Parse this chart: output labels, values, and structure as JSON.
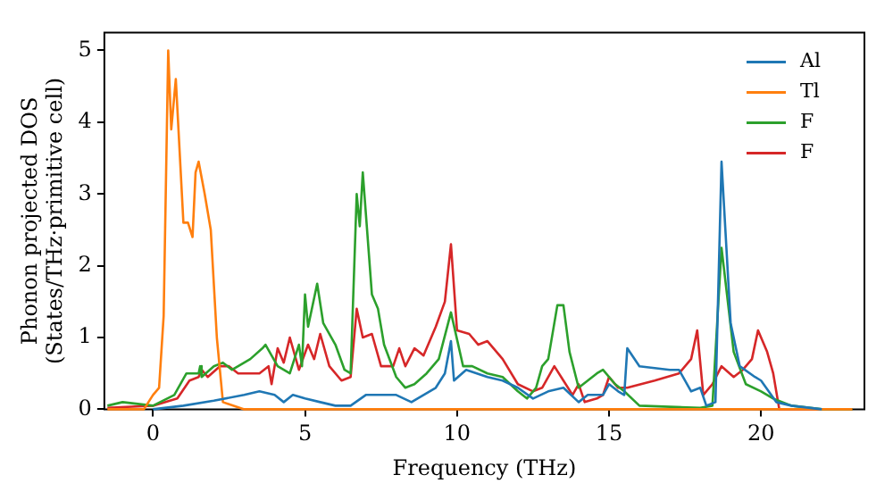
{
  "chart_data": {
    "type": "line",
    "xlabel": "Frequency (THz)",
    "ylabel": "Phonon projected DOS\n(States/THz·primitive cell)",
    "xlim": [
      -1.6,
      23.4
    ],
    "ylim": [
      0,
      5.25
    ],
    "xticks": [
      0,
      5,
      10,
      15,
      20
    ],
    "yticks": [
      0,
      1,
      2,
      3,
      4,
      5
    ],
    "grid": false,
    "legend": "top right",
    "marker": "none",
    "line_style": "solid",
    "series": [
      {
        "name": "Al",
        "color": "#1f77b4",
        "x": [
          0,
          1,
          2,
          3,
          3.5,
          4,
          4.3,
          4.6,
          5,
          5.5,
          6,
          6.5,
          7,
          8,
          8.5,
          9.3,
          9.6,
          9.8,
          9.9,
          10.3,
          11,
          11.5,
          12,
          12.5,
          13,
          13.5,
          14,
          14.3,
          14.8,
          15,
          15.3,
          15.5,
          15.6,
          16,
          17,
          17.3,
          17.7,
          18,
          18.2,
          18.5,
          18.7,
          19,
          19.3,
          19.8,
          20,
          20.5,
          21,
          22
        ],
        "values": [
          0,
          0.05,
          0.12,
          0.2,
          0.25,
          0.2,
          0.1,
          0.2,
          0.15,
          0.1,
          0.05,
          0.05,
          0.2,
          0.2,
          0.1,
          0.3,
          0.5,
          0.95,
          0.4,
          0.55,
          0.45,
          0.4,
          0.3,
          0.15,
          0.25,
          0.3,
          0.1,
          0.2,
          0.2,
          0.35,
          0.25,
          0.2,
          0.85,
          0.6,
          0.55,
          0.55,
          0.25,
          0.3,
          0.05,
          0.1,
          3.45,
          1.2,
          0.6,
          0.45,
          0.4,
          0.1,
          0.05,
          0
        ]
      },
      {
        "name": "Tl",
        "color": "#ff7f0e",
        "x": [
          -1.5,
          -0.3,
          0,
          0.2,
          0.35,
          0.5,
          0.6,
          0.75,
          1,
          1.15,
          1.3,
          1.4,
          1.5,
          1.7,
          1.9,
          2.1,
          2.3,
          3,
          5,
          10,
          15,
          20,
          23
        ],
        "values": [
          0,
          0,
          0.2,
          0.3,
          1.3,
          5,
          3.9,
          4.6,
          2.6,
          2.6,
          2.4,
          3.3,
          3.45,
          3,
          2.5,
          1,
          0.1,
          0,
          0,
          0,
          0,
          0,
          0
        ]
      },
      {
        "name": "F",
        "color": "#2ca02c",
        "x": [
          -1.5,
          -1,
          0,
          0.7,
          1.1,
          1.5,
          1.55,
          1.6,
          2,
          2.3,
          2.6,
          3.2,
          3.6,
          3.7,
          4.1,
          4.5,
          4.8,
          4.9,
          5,
          5.1,
          5.4,
          5.6,
          6,
          6.3,
          6.5,
          6.7,
          6.8,
          6.9,
          7.2,
          7.4,
          7.6,
          8,
          8.3,
          8.6,
          9,
          9.4,
          9.8,
          10.2,
          10.5,
          11,
          11.5,
          12,
          12.3,
          12.6,
          12.8,
          13,
          13.3,
          13.5,
          13.7,
          14,
          14.6,
          14.8,
          15.2,
          15.5,
          16,
          18,
          18.4,
          18.7,
          19.1,
          19.5,
          20,
          20.4,
          21,
          22,
          23
        ],
        "values": [
          0.05,
          0.1,
          0.05,
          0.2,
          0.5,
          0.5,
          0.6,
          0.45,
          0.6,
          0.65,
          0.55,
          0.7,
          0.85,
          0.9,
          0.6,
          0.5,
          0.9,
          0.6,
          1.6,
          1.15,
          1.75,
          1.2,
          0.9,
          0.55,
          0.5,
          3,
          2.55,
          3.3,
          1.6,
          1.4,
          0.9,
          0.45,
          0.3,
          0.35,
          0.5,
          0.7,
          1.35,
          0.6,
          0.6,
          0.5,
          0.45,
          0.25,
          0.15,
          0.3,
          0.6,
          0.7,
          1.45,
          1.45,
          0.8,
          0.3,
          0.5,
          0.55,
          0.35,
          0.25,
          0.05,
          0.02,
          0.05,
          2.25,
          0.8,
          0.35,
          0.25,
          0.15,
          0.05,
          0,
          0
        ]
      },
      {
        "name": "F",
        "color": "#d62728",
        "x": [
          -1.5,
          0,
          0.8,
          1.2,
          1.5,
          1.6,
          1.8,
          2.2,
          2.5,
          2.8,
          3.5,
          3.8,
          3.9,
          4.1,
          4.3,
          4.5,
          4.8,
          5.1,
          5.3,
          5.5,
          5.8,
          6.2,
          6.5,
          6.7,
          6.9,
          7.2,
          7.5,
          7.9,
          8.1,
          8.3,
          8.6,
          8.9,
          9.3,
          9.6,
          9.8,
          10,
          10.4,
          10.7,
          11,
          11.5,
          12,
          12.5,
          12.8,
          13.2,
          13.5,
          13.8,
          14,
          14.2,
          14.6,
          14.8,
          15,
          15.3,
          15.6,
          16.5,
          17.3,
          17.7,
          17.9,
          18.1,
          18.4,
          18.7,
          19.1,
          19.4,
          19.7,
          19.9,
          20.2,
          20.4,
          20.6,
          22,
          23
        ],
        "values": [
          0.02,
          0.05,
          0.15,
          0.4,
          0.45,
          0.55,
          0.45,
          0.6,
          0.6,
          0.5,
          0.5,
          0.6,
          0.35,
          0.85,
          0.65,
          1,
          0.55,
          0.9,
          0.7,
          1.05,
          0.6,
          0.4,
          0.45,
          1.4,
          1,
          1.05,
          0.6,
          0.6,
          0.85,
          0.6,
          0.85,
          0.75,
          1.15,
          1.5,
          2.3,
          1.1,
          1.05,
          0.9,
          0.95,
          0.7,
          0.35,
          0.25,
          0.3,
          0.6,
          0.4,
          0.2,
          0.35,
          0.1,
          0.15,
          0.2,
          0.45,
          0.3,
          0.3,
          0.4,
          0.5,
          0.7,
          1.1,
          0.2,
          0.35,
          0.6,
          0.45,
          0.55,
          0.7,
          1.1,
          0.8,
          0.5,
          0,
          0,
          0
        ]
      }
    ]
  }
}
